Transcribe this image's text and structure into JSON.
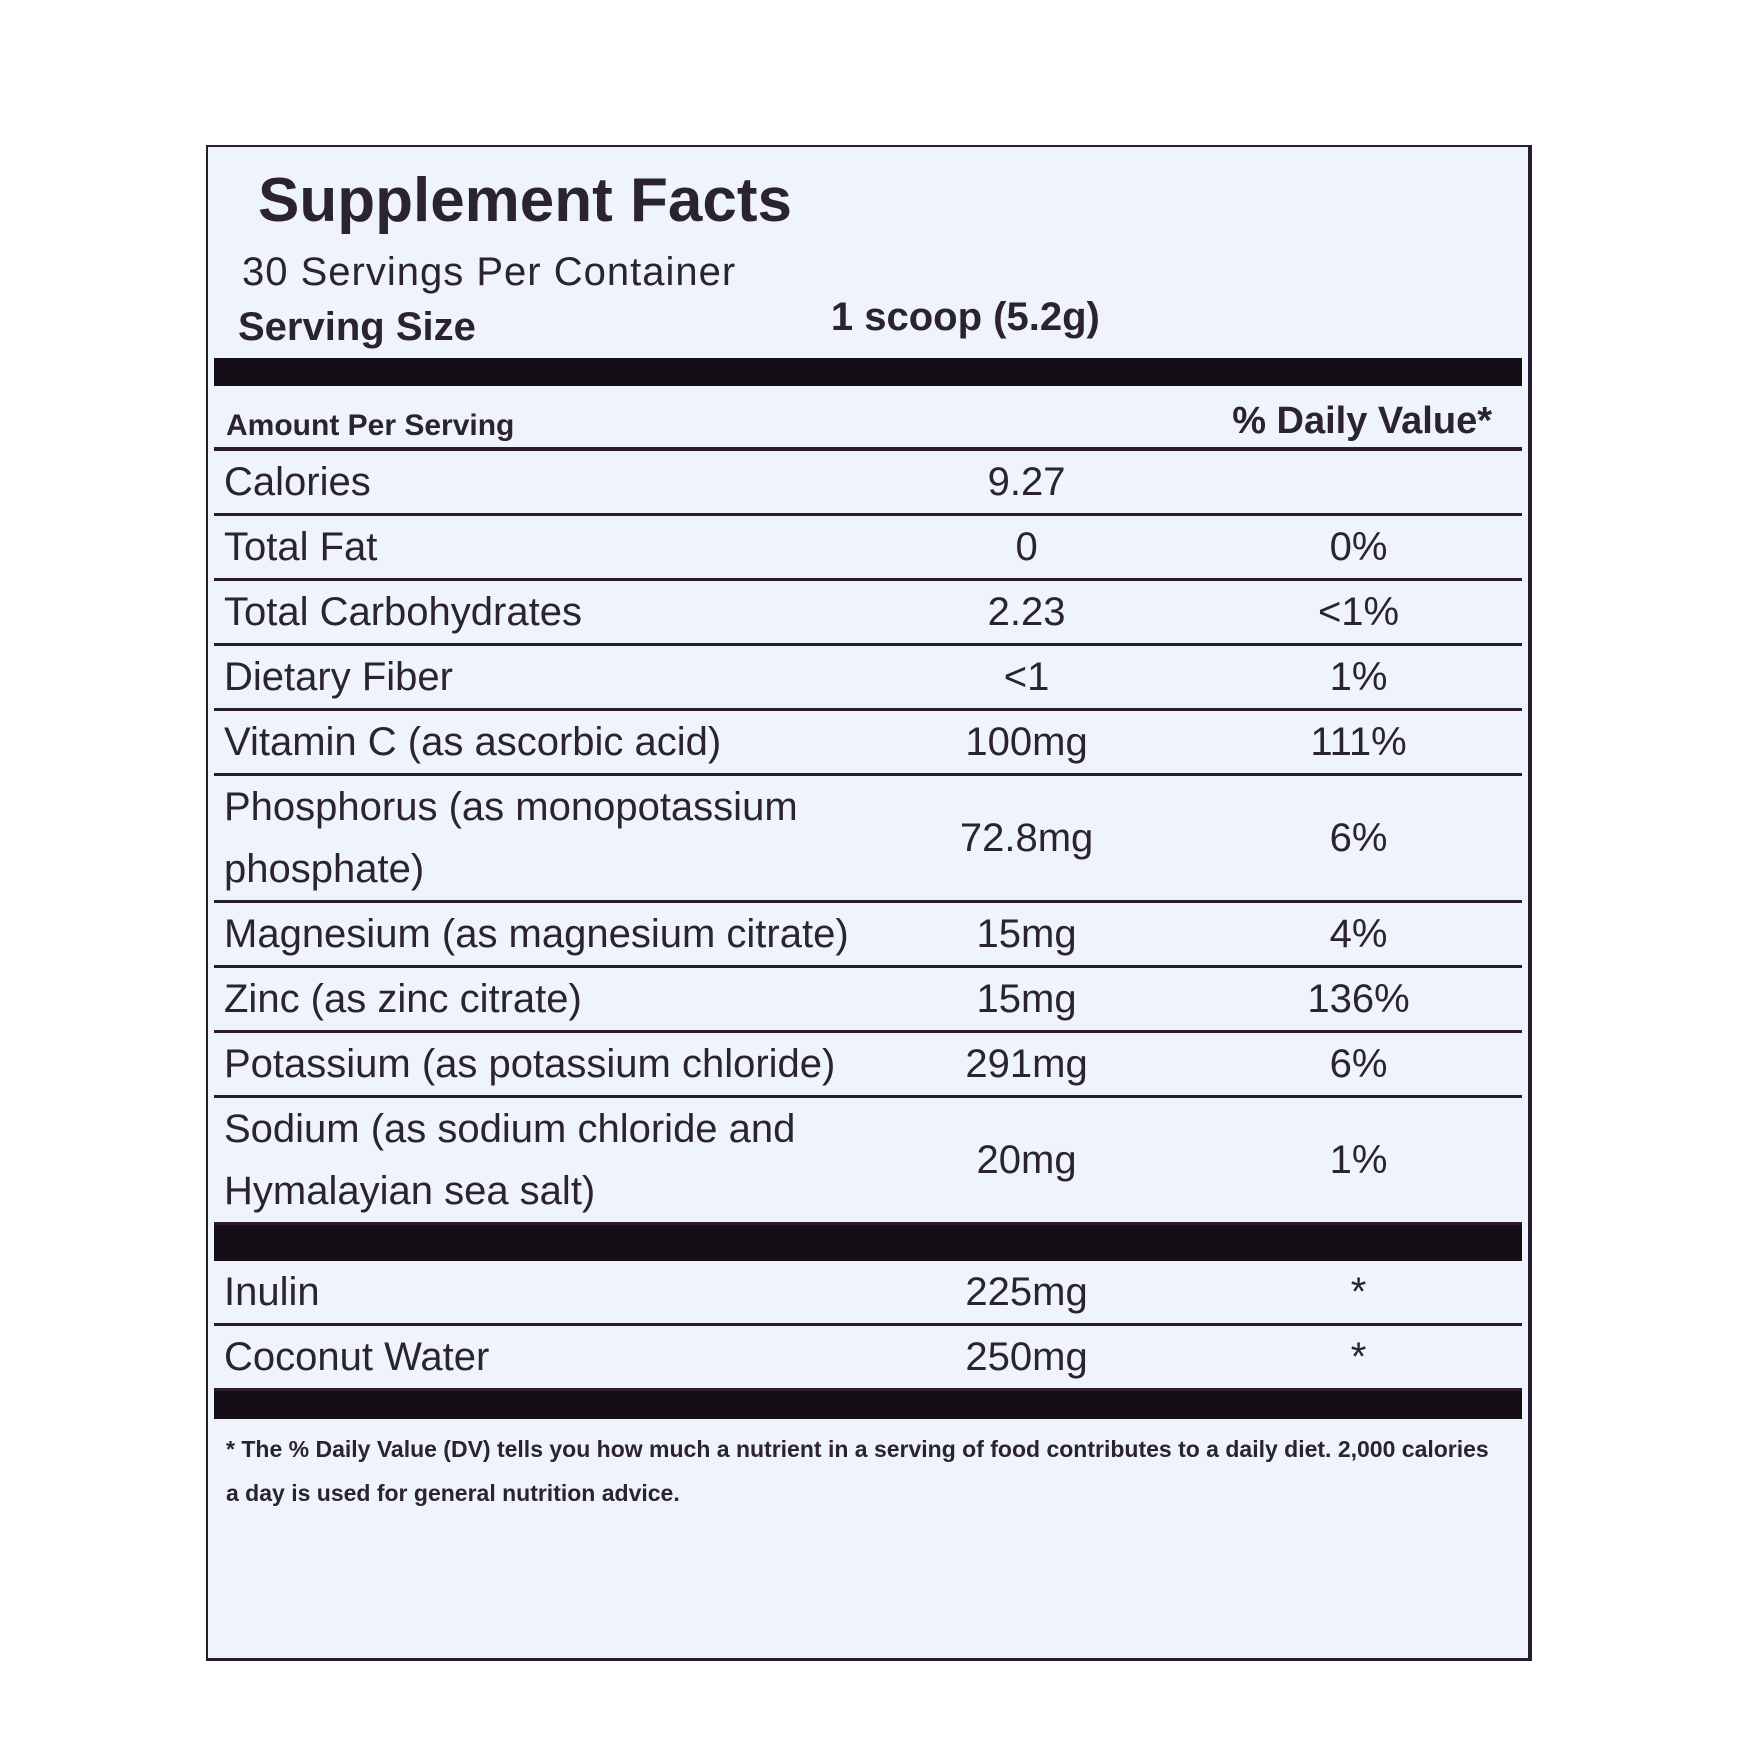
{
  "title": "Supplement Facts",
  "servings": "30 Servings Per Container",
  "serving_size": {
    "label": "Serving Size",
    "value": "1 scoop (5.2g)"
  },
  "header": {
    "amount": "Amount Per Serving",
    "dv": "% Daily Value*"
  },
  "rows": [
    {
      "name": "Calories",
      "amount": "9.27"
    },
    {
      "name": "Total Fat",
      "amount": "0",
      "dv": "0%"
    },
    {
      "name": "Total Carbohydrates",
      "amount": "2.23",
      "dv": "<1%"
    },
    {
      "name": "Dietary Fiber",
      "amount": "<1",
      "dv": "1%"
    },
    {
      "name": "Vitamin C (as ascorbic acid)",
      "amount": "100mg",
      "dv": "111%"
    },
    {
      "name": "Phosphorus (as monopotassium phosphate)",
      "amount": "72.8mg",
      "dv": "6%"
    },
    {
      "name": "Magnesium (as magnesium citrate)",
      "amount": "15mg",
      "dv": "4%"
    },
    {
      "name": "Zinc (as zinc citrate)",
      "amount": "15mg",
      "dv": "136%"
    },
    {
      "name": "Potassium (as potassium chloride)",
      "amount": "291mg",
      "dv": "6%"
    },
    {
      "name": "Sodium (as sodium chloride and Hymalayian sea salt)",
      "amount": "20mg",
      "dv": "1%"
    }
  ],
  "other_rows": [
    {
      "name": "Inulin",
      "amount": "225mg",
      "dv": "*"
    },
    {
      "name": "Coconut Water",
      "amount": "250mg",
      "dv": "*"
    }
  ],
  "footnote": "* The % Daily Value (DV) tells you how much a nutrient in a serving of food contributes to a daily diet. 2,000 calories a day is used for general nutrition advice."
}
